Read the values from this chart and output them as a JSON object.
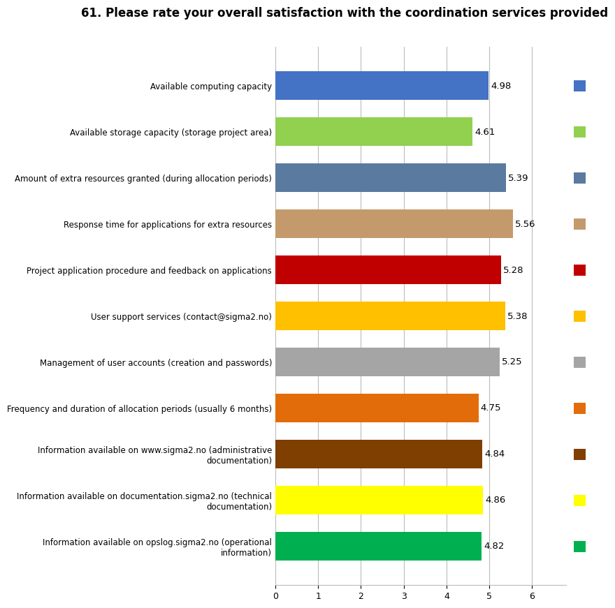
{
  "title": "61. Please rate your overall satisfaction with the coordination services provided",
  "categories": [
    "Available computing capacity",
    "Available storage capacity (storage project area)",
    "Amount of extra resources granted (during allocation periods)",
    "Response time for applications for extra resources",
    "Project application procedure and feedback on applications",
    "User support services (contact@sigma2.no)",
    "Management of user accounts (creation and passwords)",
    "Frequency and duration of allocation periods (usually 6 months)",
    "Information available on www.sigma2.no (administrative\ndocumentation)",
    "Information available on documentation.sigma2.no (technical\ndocumentation)",
    "Information available on opslog.sigma2.no (operational\ninformation)"
  ],
  "values": [
    4.98,
    4.61,
    5.39,
    5.56,
    5.28,
    5.38,
    5.25,
    4.75,
    4.84,
    4.86,
    4.82
  ],
  "colors": [
    "#4472C4",
    "#92D050",
    "#5A7A9F",
    "#C49A6C",
    "#C00000",
    "#FFC000",
    "#A5A5A5",
    "#E36C0A",
    "#7F3F00",
    "#FFFF00",
    "#00B050"
  ],
  "xlim": [
    0,
    6.8
  ],
  "xticks": [
    0,
    1,
    2,
    3,
    4,
    5,
    6
  ],
  "title_fontsize": 12,
  "bar_height": 0.62,
  "value_fontsize": 9.5,
  "label_fontsize": 8.5,
  "background_color": "#FFFFFF",
  "grid_color": "#BBBBBB"
}
